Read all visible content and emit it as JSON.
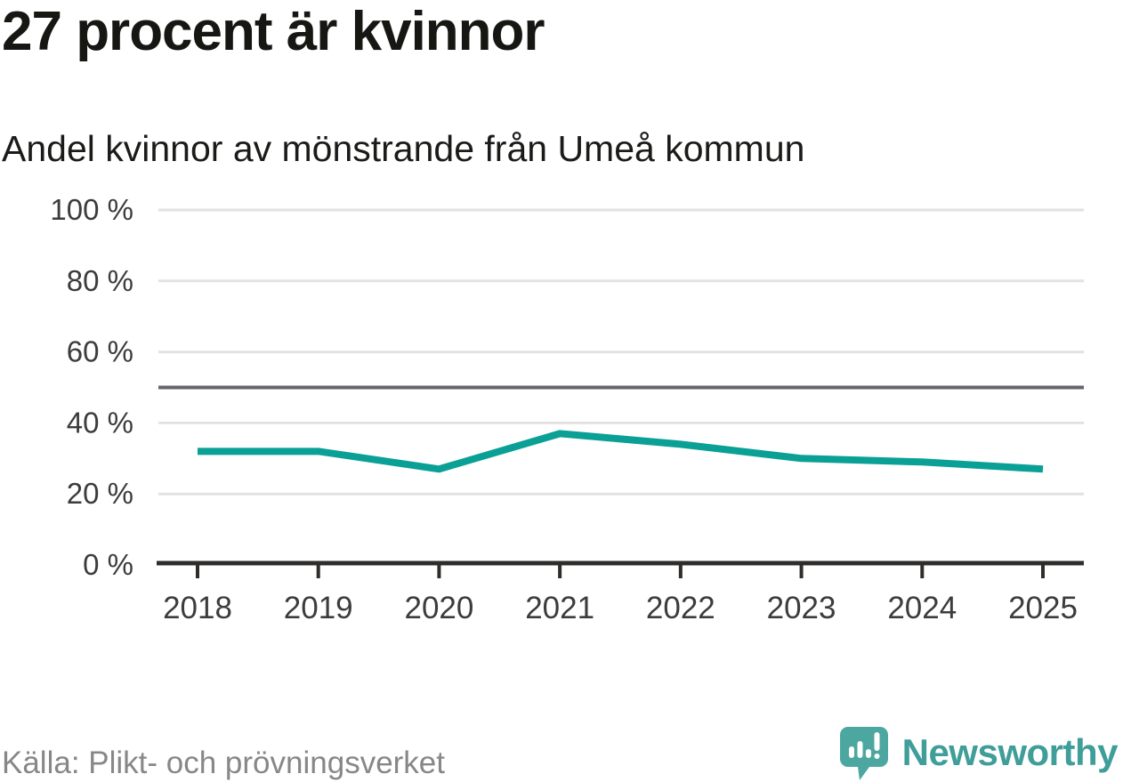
{
  "header": {
    "title": "27 procent är kvinnor",
    "subtitle": "Andel kvinnor av mönstrande från Umeå kommun"
  },
  "footer": {
    "source": "Källa: Plikt- och prövningsverket",
    "brand_name": "Newsworthy"
  },
  "colors": {
    "line": "#0aa096",
    "grid": "#e2e2e2",
    "reference_line": "#65656c",
    "axis": "#2e2d2b",
    "tick_label": "#3c3c3c",
    "brand_teal": "#3f9e99",
    "logo_bubble": "#4da7a1"
  },
  "chart_data": {
    "type": "line",
    "title": "27 procent är kvinnor",
    "subtitle": "Andel kvinnor av mönstrande från Umeå kommun",
    "categories": [
      "2018",
      "2019",
      "2020",
      "2021",
      "2022",
      "2023",
      "2024",
      "2025"
    ],
    "values": [
      32,
      32,
      27,
      37,
      34,
      30,
      29,
      27
    ],
    "xlabel": "",
    "ylabel": "",
    "ylim": [
      0,
      100
    ],
    "yticks": [
      0,
      20,
      40,
      60,
      80,
      100
    ],
    "ytick_suffix": " %",
    "reference_line": 50,
    "grid": true,
    "legend": false,
    "source": "Källa: Plikt- och prövningsverket"
  }
}
